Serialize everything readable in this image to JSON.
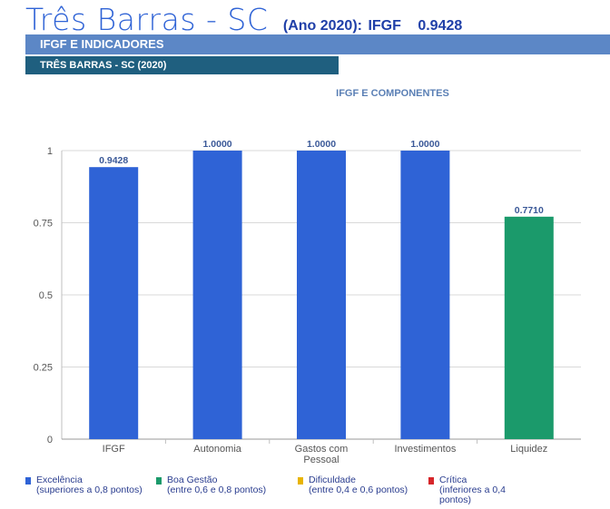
{
  "header": {
    "city": "Três Barras - SC",
    "year": "(Ano 2020):",
    "ifgf_label": "IFGF",
    "ifgf_value": "0.9428"
  },
  "banners": {
    "section": "IFGF E INDICADORES",
    "subsection": "TRÊS BARRAS - SC (2020)"
  },
  "chart_data": {
    "type": "bar",
    "title": "IFGF E COMPONENTES",
    "categories": [
      "IFGF",
      "Autonomia",
      "Gastos com Pessoal",
      "Investimentos",
      "Liquidez"
    ],
    "category_lines": [
      [
        "IFGF"
      ],
      [
        "Autonomia"
      ],
      [
        "Gastos com",
        "Pessoal"
      ],
      [
        "Investimentos"
      ],
      [
        "Liquidez"
      ]
    ],
    "values": [
      0.9428,
      1.0,
      1.0,
      1.0,
      0.771
    ],
    "value_labels": [
      "0.9428",
      "1.0000",
      "1.0000",
      "1.0000",
      "0.7710"
    ],
    "bar_colors": [
      "#2f63d6",
      "#2f63d6",
      "#2f63d6",
      "#2f63d6",
      "#1b9a6b"
    ],
    "ylim": [
      0,
      1
    ],
    "yticks": [
      0,
      0.25,
      0.5,
      0.75,
      1
    ],
    "ytick_labels": [
      "0",
      "0.25",
      "0.5",
      "0.75",
      "1"
    ],
    "grid": true,
    "legend_position": "bottom"
  },
  "legend": [
    {
      "label": "Excelência",
      "desc": "(superiores a 0,8 pontos)",
      "color": "#2f63d6"
    },
    {
      "label": "Boa Gestão",
      "desc": "(entre 0,6 e 0,8 pontos)",
      "color": "#1b9a6b"
    },
    {
      "label": "Dificuldade",
      "desc": "(entre 0,4 e 0,6 pontos)",
      "color": "#e8b400"
    },
    {
      "label": "Crítica",
      "desc": "(inferiores a 0,4 pontos)",
      "desc_lines": [
        "(inferiores a 0,4",
        "pontos)"
      ],
      "color": "#d6262a"
    }
  ]
}
